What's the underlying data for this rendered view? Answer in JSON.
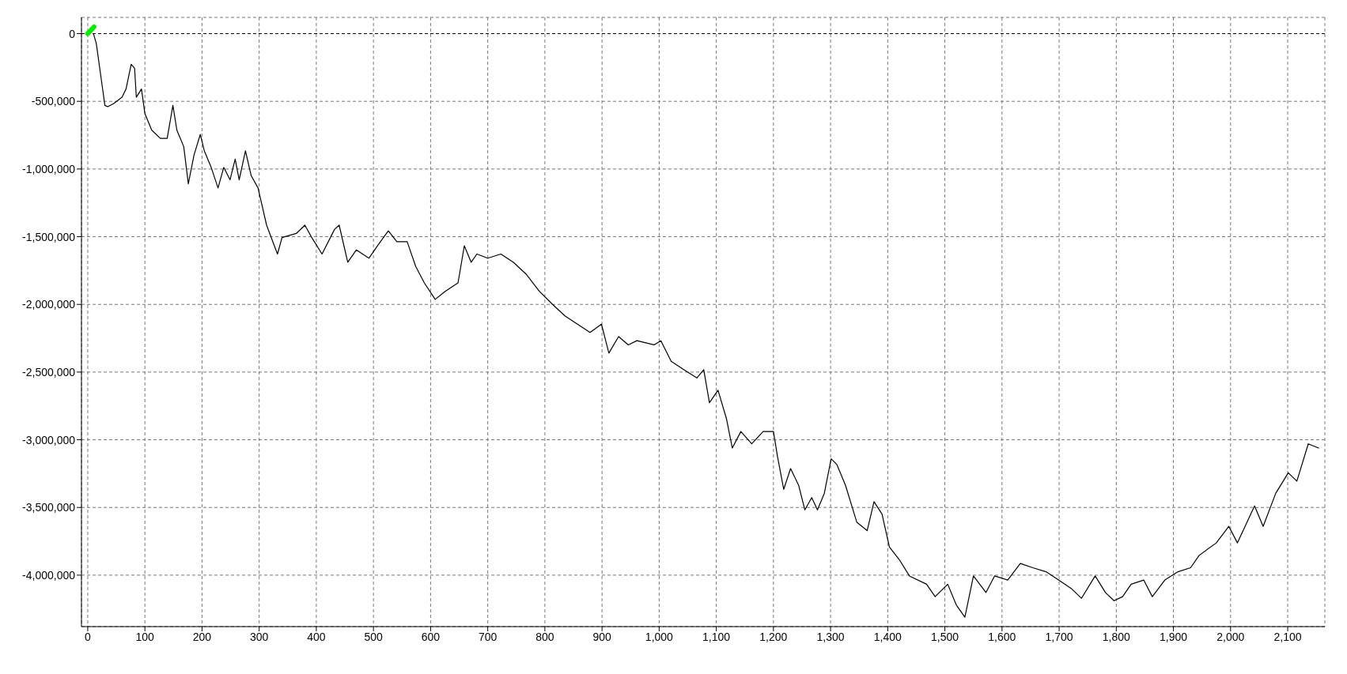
{
  "chart_data": {
    "type": "line",
    "xlim": [
      -11,
      2165
    ],
    "ylim": [
      -4380000,
      120000
    ],
    "xticks": [
      0,
      100,
      200,
      300,
      400,
      500,
      600,
      700,
      800,
      900,
      {
        "value": 1000,
        "label": "1,000"
      },
      {
        "value": 1100,
        "label": "1,100"
      },
      {
        "value": 1200,
        "label": "1,200"
      },
      {
        "value": 1300,
        "label": "1,300"
      },
      {
        "value": 1400,
        "label": "1,400"
      },
      {
        "value": 1500,
        "label": "1,500"
      },
      {
        "value": 1600,
        "label": "1,600"
      },
      {
        "value": 1700,
        "label": "1,700"
      },
      {
        "value": 1800,
        "label": "1,800"
      },
      {
        "value": 1900,
        "label": "1,900"
      },
      {
        "value": 2000,
        "label": "2,000"
      },
      {
        "value": 2100,
        "label": "2,100"
      }
    ],
    "yticks": [
      0,
      {
        "value": -500000,
        "label": "-500,000"
      },
      {
        "value": -1000000,
        "label": "-1,000,000"
      },
      {
        "value": -1500000,
        "label": "-1,500,000"
      },
      {
        "value": -2000000,
        "label": "-2,000,000"
      },
      {
        "value": -2500000,
        "label": "-2,500,000"
      },
      {
        "value": -3000000,
        "label": "-3,000,000"
      },
      {
        "value": -3500000,
        "label": "-3,500,000"
      },
      {
        "value": -4000000,
        "label": "-4,000,000"
      }
    ],
    "grid": true,
    "legend": false,
    "marker": "none",
    "line_style": "solid",
    "ref_lines": [
      {
        "axis": "y",
        "value": 0,
        "color": "#000000",
        "line_style": "dashed"
      }
    ],
    "series": [
      {
        "color": "#000000",
        "x": [
          10,
          15,
          22,
          30,
          35,
          45,
          60,
          67,
          76,
          82,
          85,
          94,
          100,
          112,
          127,
          139,
          149,
          156,
          168,
          176,
          186,
          197,
          204,
          216,
          228,
          238,
          249,
          258,
          265,
          276,
          286,
          298,
          313,
          332,
          340,
          365,
          380,
          392,
          410,
          432,
          440,
          455,
          470,
          492,
          507,
          526,
          541,
          559,
          574,
          589,
          608,
          626,
          648,
          659,
          671,
          681,
          700,
          723,
          745,
          768,
          790,
          812,
          835,
          857,
          879,
          899,
          912,
          929,
          946,
          961,
          991,
          1003,
          1021,
          1043,
          1066,
          1078,
          1088,
          1103,
          1118,
          1128,
          1143,
          1162,
          1182,
          1200,
          1207,
          1218,
          1230,
          1244,
          1255,
          1267,
          1277,
          1289,
          1301,
          1311,
          1326,
          1346,
          1364,
          1376,
          1390,
          1403,
          1420,
          1438,
          1468,
          1483,
          1505,
          1520,
          1535,
          1550,
          1572,
          1587,
          1610,
          1632,
          1654,
          1677,
          1699,
          1721,
          1739,
          1763,
          1781,
          1796,
          1811,
          1826,
          1848,
          1863,
          1885,
          1908,
          1930,
          1945,
          1975,
          1997,
          2012,
          2042,
          2057,
          2079,
          2101,
          2116,
          2136,
          2154
        ],
        "values": [
          0,
          -73000,
          -287000,
          -530000,
          -540000,
          -518000,
          -470000,
          -409000,
          -226000,
          -256000,
          -470000,
          -409000,
          -590000,
          -713000,
          -774000,
          -774000,
          -530000,
          -713000,
          -835000,
          -1110000,
          -896000,
          -744000,
          -866000,
          -988000,
          -1140000,
          -988000,
          -1080000,
          -927000,
          -1080000,
          -866000,
          -1049000,
          -1140000,
          -1415000,
          -1628000,
          -1506000,
          -1476000,
          -1415000,
          -1506000,
          -1628000,
          -1445000,
          -1415000,
          -1689000,
          -1598000,
          -1659000,
          -1567000,
          -1457000,
          -1537000,
          -1537000,
          -1720000,
          -1841000,
          -1963000,
          -1902000,
          -1841000,
          -1567000,
          -1689000,
          -1628000,
          -1659000,
          -1628000,
          -1689000,
          -1780000,
          -1902000,
          -1994000,
          -2085000,
          -2146000,
          -2207000,
          -2146000,
          -2360000,
          -2238000,
          -2299000,
          -2268000,
          -2299000,
          -2268000,
          -2421000,
          -2482000,
          -2543000,
          -2482000,
          -2726000,
          -2634000,
          -2848000,
          -3061000,
          -2939000,
          -3030000,
          -2939000,
          -2939000,
          -3122000,
          -3366000,
          -3213000,
          -3335000,
          -3518000,
          -3427000,
          -3518000,
          -3396000,
          -3140000,
          -3183000,
          -3335000,
          -3610000,
          -3671000,
          -3457000,
          -3549000,
          -3793000,
          -3884000,
          -4006000,
          -4067000,
          -4159000,
          -4067000,
          -4220000,
          -4311000,
          -4006000,
          -4128000,
          -4006000,
          -4036000,
          -3914000,
          -3945000,
          -3975000,
          -4036000,
          -4098000,
          -4171000,
          -4006000,
          -4128000,
          -4189000,
          -4159000,
          -4067000,
          -4036000,
          -4159000,
          -4036000,
          -3975000,
          -3945000,
          -3854000,
          -3762000,
          -3640000,
          -3762000,
          -3488000,
          -3640000,
          -3396000,
          -3244000,
          -3305000,
          -3030000,
          -3061000
        ]
      },
      {
        "color": "#00ee00",
        "x": [
          0,
          11
        ],
        "values": [
          0,
          50000
        ]
      }
    ]
  }
}
